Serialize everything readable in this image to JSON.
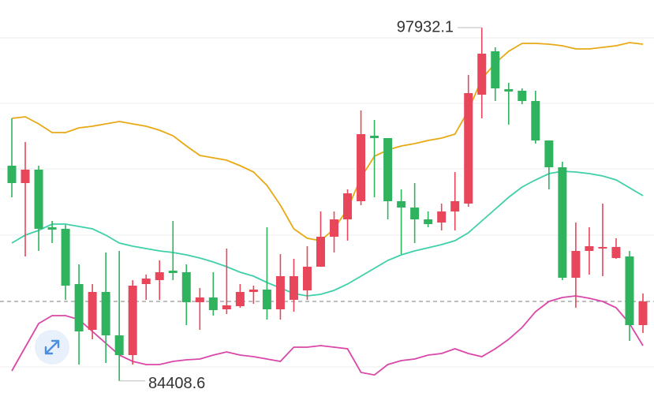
{
  "chart_data": {
    "type": "candlestick",
    "ylim": [
      83527,
      98989
    ],
    "up_color": "#e8465a",
    "down_color": "#2fb35e",
    "open": [
      92647,
      91983,
      92496,
      90291,
      90231,
      88117,
      86365,
      87815,
      86154,
      85399,
      88117,
      88268,
      88630,
      88570,
      87422,
      87604,
      87151,
      87271,
      87815,
      87906,
      87151,
      87513,
      87875,
      88782,
      89929,
      90593,
      91288,
      93795,
      93704,
      91288,
      91046,
      90593,
      90473,
      90896,
      91197,
      95365,
      97026,
      95576,
      95516,
      95123,
      93613,
      92586,
      88359,
      89385,
      89476,
      89113,
      89174,
      86547
    ],
    "high": [
      94459,
      93553,
      92647,
      90533,
      90382,
      88872,
      88117,
      89325,
      89385,
      88268,
      88479,
      89023,
      90533,
      88872,
      87966,
      88570,
      89476,
      88117,
      88057,
      90291,
      89265,
      89084,
      89567,
      90896,
      90896,
      91741,
      94761,
      94399,
      93704,
      91741,
      91983,
      90896,
      91197,
      92405,
      96120,
      97932.1,
      97177,
      95818,
      95607,
      95516,
      93613,
      92798,
      90473,
      90291,
      91197,
      89869,
      89385,
      87754
    ],
    "low": [
      91439,
      89174,
      89385,
      89687,
      87513,
      85037,
      86003,
      85097,
      84408.6,
      85037,
      87513,
      87513,
      88268,
      86547,
      86365,
      86909,
      86969,
      87211,
      87362,
      86758,
      86758,
      87060,
      87513,
      88782,
      89325,
      89778,
      91137,
      91439,
      90593,
      89265,
      89687,
      90291,
      90171,
      90171,
      91077,
      94459,
      95123,
      94217,
      95003,
      93493,
      91741,
      88268,
      87211,
      88479,
      88419,
      89084,
      85943,
      86244
    ],
    "close": [
      91983,
      92496,
      90231,
      90201,
      88057,
      86305,
      87815,
      86154,
      85399,
      88057,
      88328,
      88570,
      88540,
      87422,
      87604,
      87121,
      87302,
      87815,
      87906,
      87151,
      88419,
      88419,
      88782,
      89929,
      90593,
      91590,
      93855,
      93704,
      91288,
      91046,
      90593,
      90412,
      90896,
      91288,
      95425,
      96936,
      95607,
      95486,
      95123,
      93613,
      92586,
      88359,
      89385,
      89567,
      89536,
      89536,
      86547,
      87453
    ],
    "bands": [
      {
        "color": "#e8a914",
        "values": [
          94459,
          94519,
          94248,
          93915,
          93915,
          94097,
          94157,
          94248,
          94338,
          94248,
          94157,
          94006,
          93795,
          93402,
          93040,
          92949,
          92858,
          92647,
          92405,
          91892,
          91137,
          90231,
          89869,
          89778,
          90231,
          90986,
          92194,
          93009,
          93251,
          93402,
          93493,
          93613,
          93704,
          93855,
          94761,
          95969,
          96573,
          97026,
          97328,
          97328,
          97298,
          97237,
          97117,
          97117,
          97177,
          97237,
          97358,
          97298
        ]
      },
      {
        "color": "#3fcfa9",
        "values": [
          89687,
          89989,
          90171,
          90412,
          90412,
          90322,
          90231,
          89989,
          89687,
          89567,
          89476,
          89385,
          89325,
          89235,
          89114,
          88963,
          88782,
          88570,
          88419,
          88177,
          87966,
          87755,
          87664,
          87725,
          87875,
          88117,
          88419,
          88721,
          89023,
          89235,
          89385,
          89506,
          89627,
          89778,
          90080,
          90533,
          90986,
          91439,
          91832,
          92103,
          92345,
          92436,
          92405,
          92345,
          92254,
          92103,
          91801,
          91499
        ]
      },
      {
        "color": "#da47a9",
        "values": [
          84795,
          85701,
          86607,
          86909,
          86909,
          86758,
          86305,
          85852,
          85399,
          85157,
          85037,
          85037,
          85157,
          85218,
          85248,
          85399,
          85520,
          85399,
          85339,
          85248,
          85157,
          85701,
          85701,
          85761,
          85701,
          85641,
          84735,
          84639,
          85037,
          85188,
          85248,
          85399,
          85459,
          85641,
          85459,
          85339,
          85641,
          86003,
          86457,
          87061,
          87453,
          87604,
          87664,
          87573,
          87453,
          87211,
          86607,
          85761
        ]
      }
    ],
    "reference_line": 87453,
    "max_label": 97932.1,
    "min_label": 84408.6
  }
}
